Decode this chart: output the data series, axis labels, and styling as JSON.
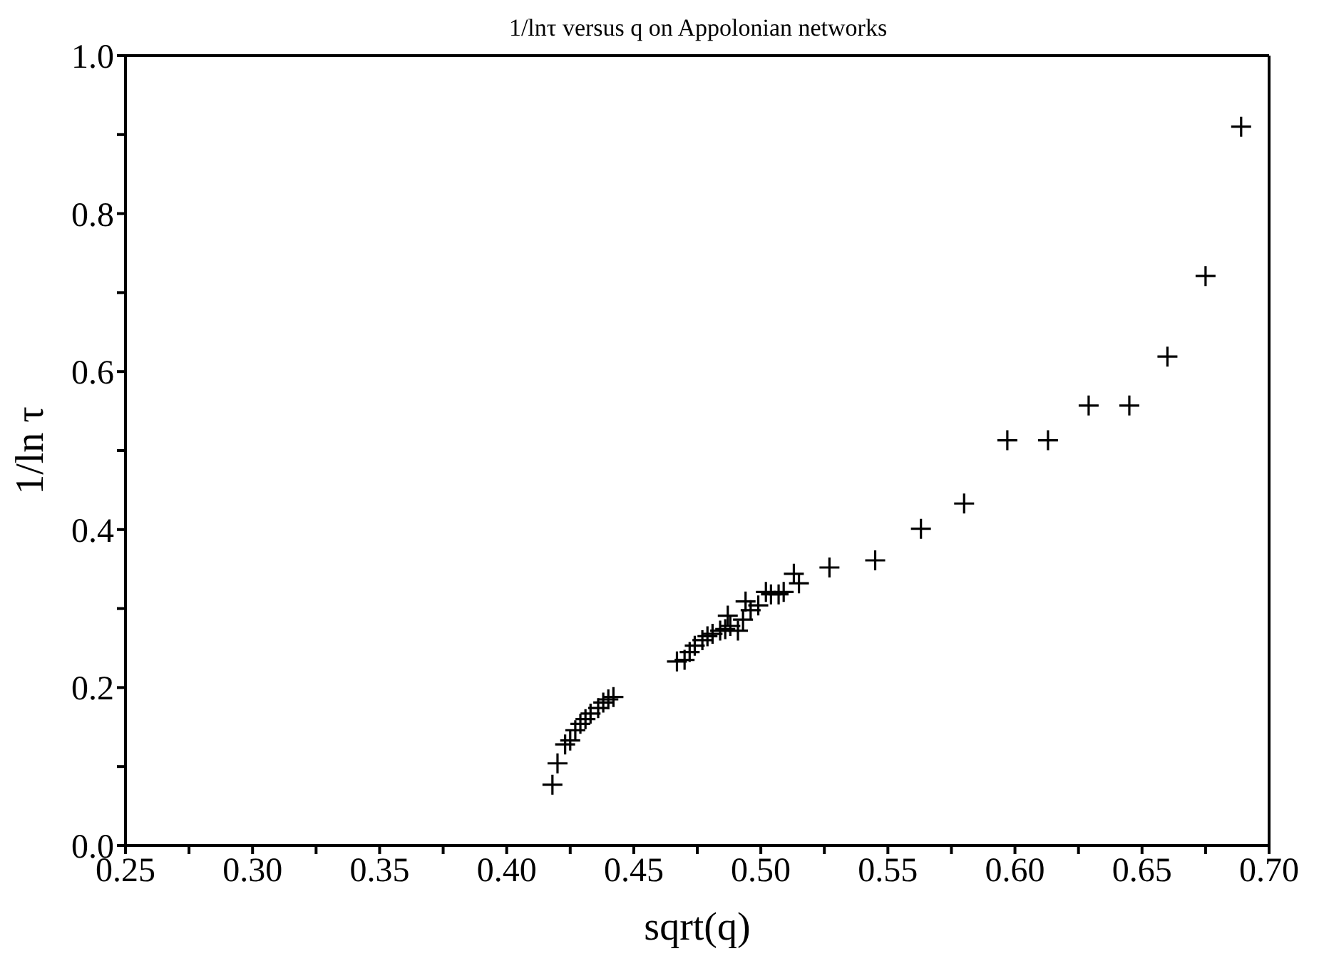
{
  "chart_data": {
    "type": "scatter",
    "title": "1/lnτ versus q on Appolonian networks",
    "xlabel": "sqrt(q)",
    "ylabel": "1/ln τ",
    "x": [
      0.418,
      0.42,
      0.423,
      0.425,
      0.427,
      0.429,
      0.431,
      0.433,
      0.436,
      0.438,
      0.44,
      0.442,
      0.467,
      0.47,
      0.472,
      0.474,
      0.477,
      0.479,
      0.481,
      0.484,
      0.486,
      0.488,
      0.491,
      0.487,
      0.494,
      0.493,
      0.496,
      0.499,
      0.502,
      0.504,
      0.507,
      0.509,
      0.513,
      0.515,
      0.527,
      0.545,
      0.563,
      0.58,
      0.597,
      0.613,
      0.629,
      0.645,
      0.66,
      0.675,
      0.689
    ],
    "series": [
      {
        "color": "#000000",
        "values": [
          0.077,
          0.104,
          0.128,
          0.133,
          0.146,
          0.154,
          0.16,
          0.167,
          0.174,
          0.181,
          0.185,
          0.188,
          0.233,
          0.235,
          0.245,
          0.253,
          0.26,
          0.265,
          0.268,
          0.272,
          0.274,
          0.278,
          0.272,
          0.291,
          0.309,
          0.286,
          0.298,
          0.304,
          0.321,
          0.318,
          0.318,
          0.321,
          0.344,
          0.332,
          0.352,
          0.361,
          0.401,
          0.433,
          0.513,
          0.513,
          0.557,
          0.557,
          0.619,
          0.721,
          0.91
        ]
      }
    ],
    "marker": "cross",
    "grid": false,
    "legend": false,
    "xlim": [
      0.25,
      0.7
    ],
    "xticks": [
      {
        "value": 0.25,
        "label": "0.25"
      },
      {
        "value": 0.275,
        "label": null
      },
      {
        "value": 0.3,
        "label": "0.30"
      },
      {
        "value": 0.325,
        "label": null
      },
      {
        "value": 0.35,
        "label": "0.35"
      },
      {
        "value": 0.375,
        "label": null
      },
      {
        "value": 0.4,
        "label": "0.40"
      },
      {
        "value": 0.425,
        "label": null
      },
      {
        "value": 0.45,
        "label": "0.45"
      },
      {
        "value": 0.475,
        "label": null
      },
      {
        "value": 0.5,
        "label": "0.50"
      },
      {
        "value": 0.525,
        "label": null
      },
      {
        "value": 0.55,
        "label": "0.55"
      },
      {
        "value": 0.575,
        "label": null
      },
      {
        "value": 0.6,
        "label": "0.60"
      },
      {
        "value": 0.625,
        "label": null
      },
      {
        "value": 0.65,
        "label": "0.65"
      },
      {
        "value": 0.675,
        "label": null
      },
      {
        "value": 0.7,
        "label": "0.70"
      }
    ],
    "ylim": [
      0,
      1
    ],
    "yticks": [
      {
        "value": 0,
        "label": "0.0"
      },
      {
        "value": 0.1,
        "label": null
      },
      {
        "value": 0.2,
        "label": "0.2"
      },
      {
        "value": 0.3,
        "label": null
      },
      {
        "value": 0.4,
        "label": "0.4"
      },
      {
        "value": 0.5,
        "label": null
      },
      {
        "value": 0.6,
        "label": "0.6"
      },
      {
        "value": 0.7,
        "label": null
      },
      {
        "value": 0.8,
        "label": "0.8"
      },
      {
        "value": 0.9,
        "label": null
      },
      {
        "value": 1,
        "label": "1.0"
      }
    ]
  }
}
